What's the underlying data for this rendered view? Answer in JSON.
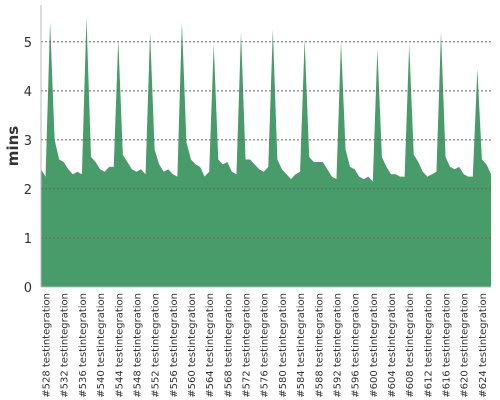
{
  "chart_data": {
    "type": "area",
    "y_label": "mins",
    "color": "#489c6a",
    "categories": [
      null,
      "#528 testintegration",
      null,
      null,
      null,
      "#532 testintegration",
      null,
      null,
      null,
      "#536 testintegration",
      null,
      null,
      null,
      "#540 testintegration",
      null,
      null,
      null,
      "#544 testintegration",
      null,
      null,
      null,
      "#548 testintegration",
      null,
      null,
      null,
      "#552 testintegration",
      null,
      null,
      null,
      "#556 testintegration",
      null,
      null,
      null,
      "#560 testintegration",
      null,
      null,
      null,
      "#564 testintegration",
      null,
      null,
      null,
      "#568 testintegration",
      null,
      null,
      null,
      "#572 testintegration",
      null,
      null,
      null,
      "#576 testintegration",
      null,
      null,
      null,
      "#580 testintegration",
      null,
      null,
      null,
      "#584 testintegration",
      null,
      null,
      null,
      "#588 testintegration",
      null,
      null,
      null,
      "#592 testintegration",
      null,
      null,
      null,
      "#596 testintegration",
      null,
      null,
      null,
      "#600 testintegration",
      null,
      null,
      null,
      "#604 testintegration",
      null,
      null,
      null,
      "#608 testintegration",
      null,
      null,
      null,
      "#612 testintegration",
      null,
      null,
      null,
      "#616 testintegration",
      null,
      null,
      null,
      "#620 testintegration",
      null,
      null,
      null,
      "#624 testintegration",
      null,
      null
    ],
    "values": [
      2.4,
      2.25,
      5.4,
      3.0,
      2.6,
      2.55,
      2.4,
      2.3,
      2.35,
      2.3,
      5.5,
      2.65,
      2.55,
      2.4,
      2.35,
      2.45,
      2.45,
      5.05,
      2.7,
      2.55,
      2.4,
      2.35,
      2.4,
      2.3,
      5.2,
      2.8,
      2.5,
      2.35,
      2.4,
      2.3,
      2.25,
      5.4,
      2.95,
      2.6,
      2.5,
      2.45,
      2.25,
      2.35,
      4.95,
      2.6,
      2.5,
      2.55,
      2.35,
      2.3,
      5.2,
      2.6,
      2.6,
      2.5,
      2.4,
      2.35,
      2.45,
      5.25,
      2.6,
      2.4,
      2.3,
      2.2,
      2.3,
      2.35,
      5.05,
      2.65,
      2.55,
      2.55,
      2.55,
      2.4,
      2.25,
      2.2,
      5.0,
      2.8,
      2.45,
      2.4,
      2.25,
      2.2,
      2.25,
      2.15,
      4.85,
      2.65,
      2.45,
      2.3,
      2.3,
      2.25,
      2.25,
      4.95,
      2.7,
      2.55,
      2.35,
      2.25,
      2.3,
      2.35,
      5.2,
      2.65,
      2.45,
      2.4,
      2.45,
      2.3,
      2.25,
      2.25,
      4.45,
      2.6,
      2.5,
      2.3
    ],
    "ylim": [
      0,
      5.75
    ],
    "yticks": [
      0,
      1,
      2,
      3,
      4,
      5
    ],
    "grid": true
  }
}
